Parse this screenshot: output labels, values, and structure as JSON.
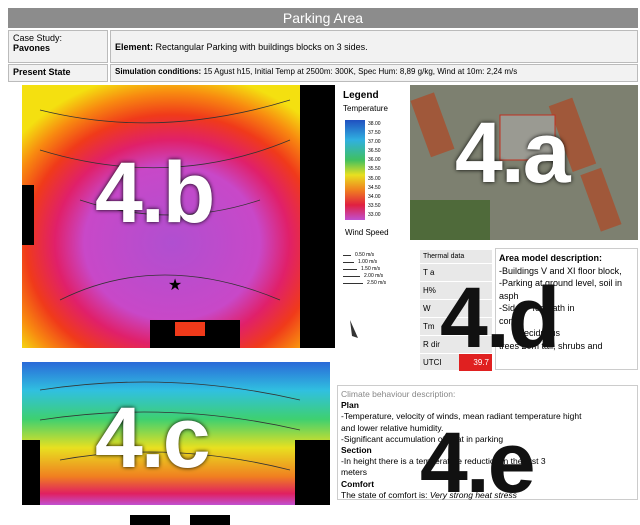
{
  "header": {
    "title": "Parking Area"
  },
  "info": {
    "case_study_label": "Case Study:",
    "case_study": "Pavones",
    "element_label": "Element:",
    "element": "Rectangular Parking with buildings blocks on 3 sides.",
    "state": "Present State",
    "sim_label": "Simulation conditions:",
    "sim": "15 Agust h15, Initial Temp at 2500m: 300K, Spec Hum: 8,89 g/kg, Wind at 10m: 2,24 m/s"
  },
  "panels": {
    "a": "4.a",
    "b": "4.b",
    "c": "4.c",
    "d": "4.d",
    "e": "4.e"
  },
  "legend": {
    "title": "Legend",
    "temperature": "Temperature",
    "scale": [
      "38.00",
      "37.50",
      "37.00",
      "36.50",
      "36.00",
      "35.50",
      "35.00",
      "34.50",
      "34.00",
      "33.50",
      "33.00"
    ],
    "wind_speed": "Wind Speed",
    "wind": [
      "0.50 m/s",
      "1.00 m/s",
      "1.50 m/s",
      "2.00 m/s",
      "2.50 m/s"
    ]
  },
  "thermal": {
    "title": "Thermal data",
    "rows": [
      "T a",
      "H%",
      "W",
      "Tm",
      "R dir",
      "UTCI"
    ],
    "utci_value": "39.7"
  },
  "area": {
    "title": "Area model description:",
    "lines": [
      "-Buildings V and XI floor block,",
      "-Parking at ground level, soil in",
      "asph",
      "-Side     footpath in",
      "conc",
      "        deciduous",
      "trees 20m tall, shrubs and"
    ]
  },
  "climate": {
    "title": "Climate behaviour description:",
    "plan": "Plan",
    "plan_lines": [
      "-Temperature, velocity of winds, mean radiant temperature hight",
      "and lower relative humidity.",
      "-Significant accumulation of heat in parking"
    ],
    "section": "Section",
    "section_lines": [
      "-In height there is a temperature reduction in the first 3",
      "meters"
    ],
    "comfort": "Comfort",
    "comfort_text": "The state of comfort is: ",
    "comfort_value": "Very strong heat stress"
  }
}
